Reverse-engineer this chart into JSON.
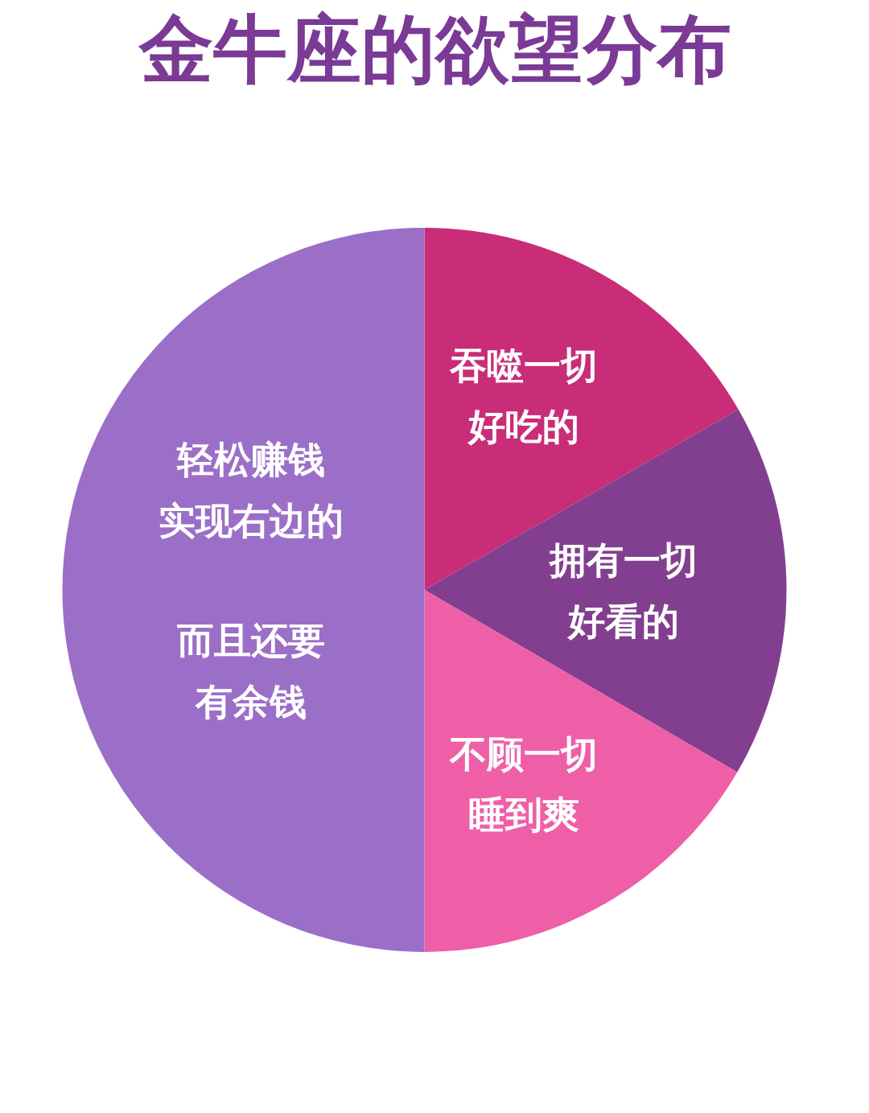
{
  "chart_data": {
    "type": "pie",
    "title": "金牛座的欲望分布",
    "categories": [
      "吞噬一切好吃的",
      "拥有一切好看的",
      "不顾一切睡到爽",
      "轻松赚钱实现右边的"
    ],
    "values": [
      16.7,
      16.7,
      16.6,
      50
    ],
    "colors": [
      "#c92d78",
      "#823f8f",
      "#ef5fa7",
      "#9b6fc8"
    ],
    "annotations": [
      "而且还要有余钱"
    ]
  }
}
